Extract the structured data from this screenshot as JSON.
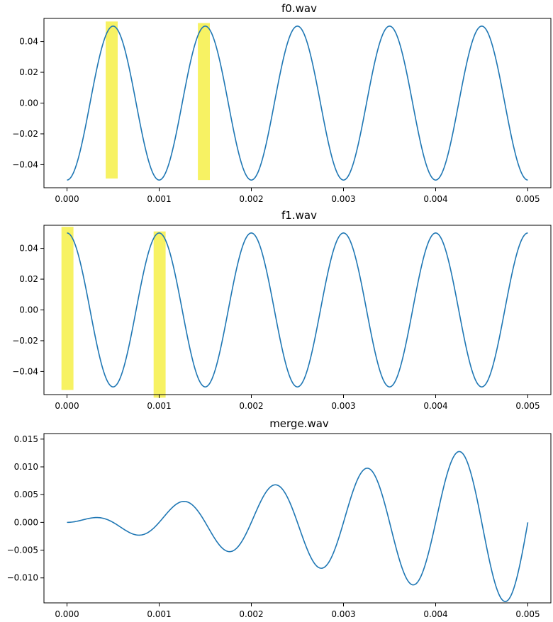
{
  "figure": {
    "line_color": "#1f77b4",
    "highlight_color": "#f5ef3c"
  },
  "chart_data": [
    {
      "type": "line",
      "title": "f0.wav",
      "xlabel": "",
      "ylabel": "",
      "xlim": [
        -0.00025,
        0.00525
      ],
      "ylim": [
        -0.055,
        0.055
      ],
      "grid": false,
      "x_ticks": [
        0,
        0.001,
        0.002,
        0.003,
        0.004,
        0.005
      ],
      "x_tick_labels": [
        "0.000",
        "0.001",
        "0.002",
        "0.003",
        "0.004",
        "0.005"
      ],
      "y_ticks": [
        0.04,
        0.02,
        0.0,
        -0.02,
        -0.04
      ],
      "y_tick_labels": [
        "0.04",
        "0.02",
        "0.00",
        "−0.02",
        "−0.04"
      ],
      "series": [
        {
          "function": "-A*cos(2*pi*f*t)",
          "amplitude": 0.05,
          "frequency_hz": 1000,
          "t_start": 0,
          "t_end": 0.005
        }
      ],
      "highlights": [
        {
          "x_from": 0.00042,
          "x_to": 0.00055,
          "y_from": -0.049,
          "y_to": 0.053
        },
        {
          "x_from": 0.00142,
          "x_to": 0.00155,
          "y_from": -0.05,
          "y_to": 0.052
        }
      ]
    },
    {
      "type": "line",
      "title": "f1.wav",
      "xlabel": "",
      "ylabel": "",
      "xlim": [
        -0.00025,
        0.00525
      ],
      "ylim": [
        -0.055,
        0.055
      ],
      "grid": false,
      "x_ticks": [
        0,
        0.001,
        0.002,
        0.003,
        0.004,
        0.005
      ],
      "x_tick_labels": [
        "0.000",
        "0.001",
        "0.002",
        "0.003",
        "0.004",
        "0.005"
      ],
      "y_ticks": [
        0.04,
        0.02,
        0.0,
        -0.02,
        -0.04
      ],
      "y_tick_labels": [
        "0.04",
        "0.02",
        "0.00",
        "−0.02",
        "−0.04"
      ],
      "series": [
        {
          "function": "A*cos(2*pi*f*t)",
          "amplitude": 0.05,
          "frequency_hz": 1000,
          "t_start": 0,
          "t_end": 0.005
        }
      ],
      "highlights": [
        {
          "x_from": -6e-05,
          "x_to": 7e-05,
          "y_from": -0.052,
          "y_to": 0.054
        },
        {
          "x_from": 0.00094,
          "x_to": 0.00107,
          "y_from": -0.057,
          "y_to": 0.051
        }
      ]
    },
    {
      "type": "line",
      "title": "merge.wav",
      "xlabel": "",
      "ylabel": "",
      "xlim": [
        -0.00025,
        0.00525
      ],
      "ylim": [
        -0.0145,
        0.016
      ],
      "grid": false,
      "x_ticks": [
        0,
        0.001,
        0.002,
        0.003,
        0.004,
        0.005
      ],
      "x_tick_labels": [
        "0.000",
        "0.001",
        "0.002",
        "0.003",
        "0.004",
        "0.005"
      ],
      "y_ticks": [
        0.015,
        0.01,
        0.005,
        0.0,
        -0.005,
        -0.01
      ],
      "y_tick_labels": [
        "0.015",
        "0.010",
        "0.005",
        "0.000",
        "−0.005",
        "−0.010"
      ],
      "series": [
        {
          "function": "envelope(t)*sin(2*pi*f*t)",
          "amplitude_growth_per_second": 3.0,
          "frequency_hz": 1000,
          "t_start": 0,
          "t_end": 0.005
        }
      ],
      "highlights": []
    }
  ]
}
